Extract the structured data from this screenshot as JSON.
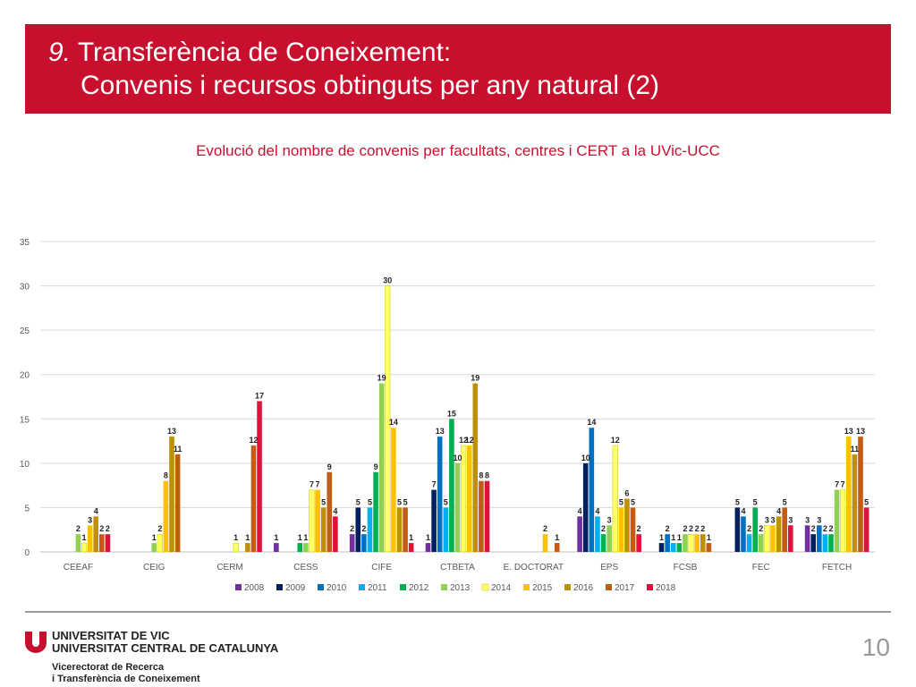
{
  "slide": {
    "title_number": "9.",
    "title_line1": "Transferència de Coneixement:",
    "title_line2": "Convenis i recursos obtinguts per any natural (2)",
    "page_number": "10"
  },
  "footer": {
    "university_line1": "UNIVERSITAT DE VIC",
    "university_line2": "UNIVERSITAT CENTRAL DE CATALUNYA",
    "vicerectorat_line1": "Vicerectorat de Recerca",
    "vicerectorat_line2": "i Transferència de Coneixement",
    "brand_color": "#c8102e"
  },
  "chart_data": {
    "type": "bar",
    "title": "Evolució del nombre de convenis per facultats, centres i CERT a la UVic-UCC",
    "xlabel": "",
    "ylabel": "",
    "ylim": [
      0,
      35
    ],
    "yticks": [
      0,
      5,
      10,
      15,
      20,
      25,
      30,
      35
    ],
    "grid": true,
    "legend_position": "bottom",
    "categories": [
      "CEEAF",
      "CEIG",
      "CERM",
      "CESS",
      "CIFE",
      "CTBETA",
      "E. DOCTORAT",
      "EPS",
      "FCSB",
      "FEC",
      "FETCH"
    ],
    "series": [
      {
        "name": "2008",
        "color": "#7030a0",
        "values": [
          null,
          null,
          null,
          1,
          2,
          1,
          null,
          4,
          null,
          null,
          3
        ]
      },
      {
        "name": "2009",
        "color": "#002060",
        "values": [
          null,
          null,
          null,
          null,
          5,
          7,
          null,
          10,
          1,
          5,
          2
        ]
      },
      {
        "name": "2010",
        "color": "#0070c0",
        "values": [
          null,
          null,
          null,
          null,
          2,
          13,
          null,
          14,
          2,
          4,
          3
        ]
      },
      {
        "name": "2011",
        "color": "#00b0f0",
        "values": [
          null,
          null,
          null,
          null,
          5,
          5,
          null,
          4,
          1,
          2,
          2
        ]
      },
      {
        "name": "2012",
        "color": "#00b050",
        "values": [
          null,
          null,
          null,
          1,
          9,
          15,
          null,
          2,
          1,
          5,
          2
        ]
      },
      {
        "name": "2013",
        "color": "#92d050",
        "values": [
          2,
          1,
          null,
          1,
          19,
          10,
          null,
          3,
          2,
          2,
          7
        ]
      },
      {
        "name": "2014",
        "color": "#ffff66",
        "values": [
          1,
          2,
          1,
          7,
          30,
          12,
          null,
          12,
          2,
          3,
          7
        ]
      },
      {
        "name": "2015",
        "color": "#ffc000",
        "values": [
          3,
          8,
          null,
          7,
          14,
          12,
          2,
          5,
          2,
          3,
          13
        ]
      },
      {
        "name": "2016",
        "color": "#bf9000",
        "values": [
          4,
          13,
          1,
          5,
          5,
          19,
          null,
          6,
          2,
          4,
          11
        ]
      },
      {
        "name": "2017",
        "color": "#c55a11",
        "values": [
          2,
          11,
          12,
          9,
          5,
          8,
          1,
          5,
          1,
          5,
          13
        ]
      },
      {
        "name": "2018",
        "color": "#dc143c",
        "values": [
          2,
          null,
          17,
          4,
          1,
          8,
          null,
          2,
          null,
          3,
          5
        ]
      }
    ]
  }
}
